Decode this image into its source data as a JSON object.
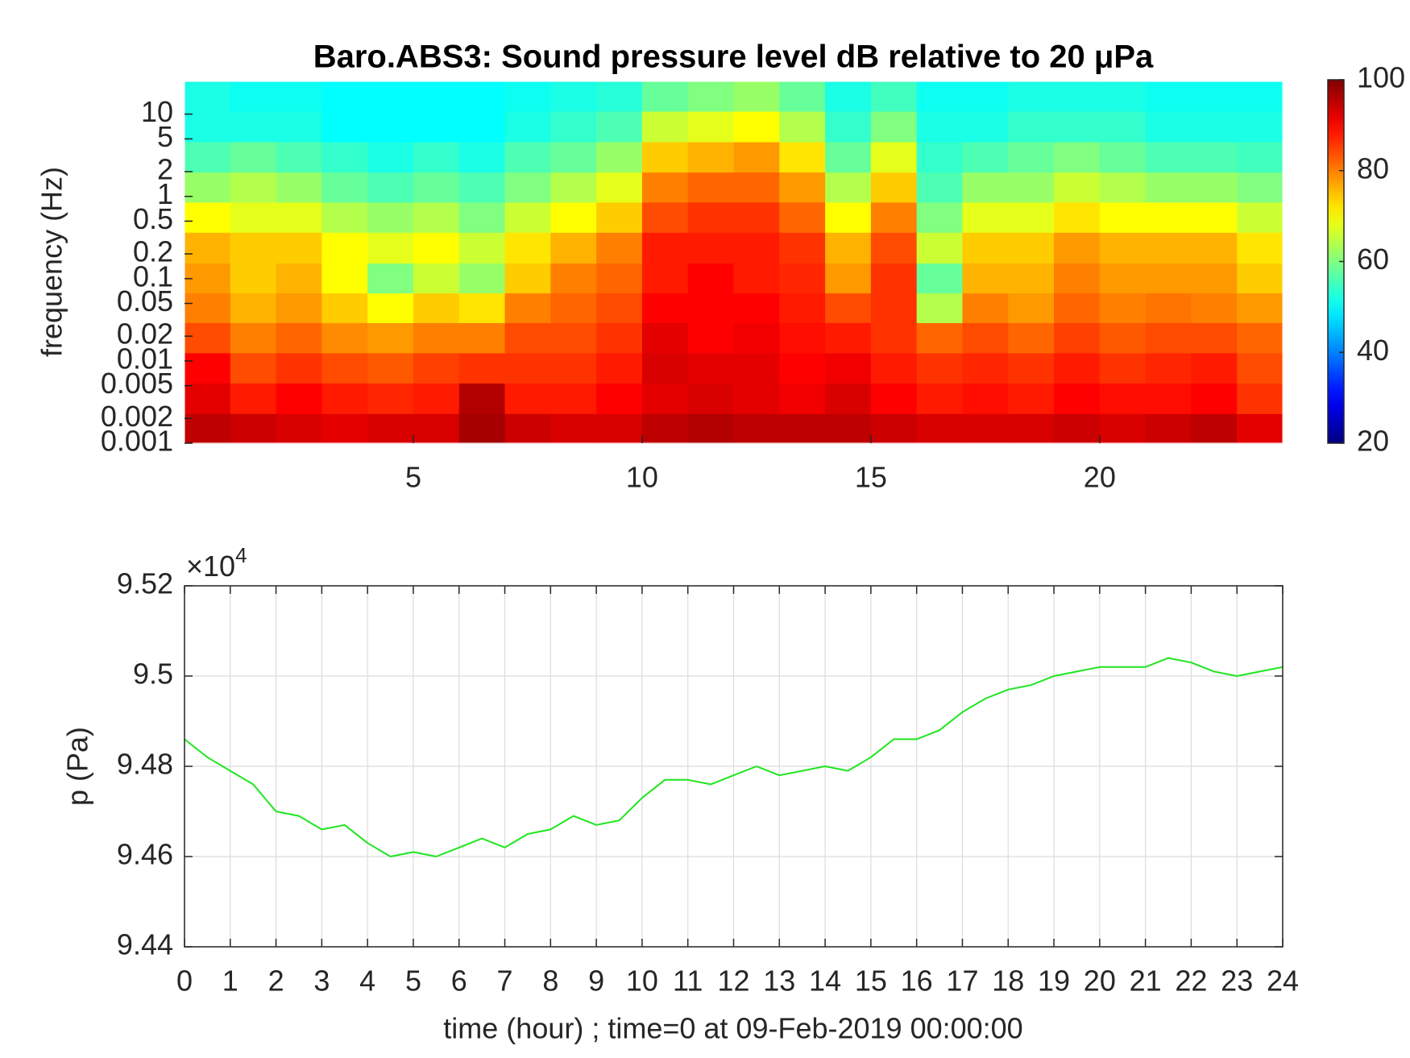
{
  "chart_data": [
    {
      "type": "heatmap",
      "title": "Baro.ABS3: Sound pressure level dB relative to 20 μPa",
      "ylabel": "frequency (Hz)",
      "x": [
        0.5,
        1.5,
        2.5,
        3.5,
        4.5,
        5.5,
        6.5,
        7.5,
        8.5,
        9.5,
        10.5,
        11.5,
        12.5,
        13.5,
        14.5,
        15.5,
        16.5,
        17.5,
        18.5,
        19.5,
        20.5,
        21.5,
        22.5,
        23.5
      ],
      "y": [
        0.0015,
        0.0035,
        0.0083,
        0.019,
        0.045,
        0.1,
        0.24,
        0.56,
        1.3,
        3,
        7.1,
        16.6
      ],
      "z": [
        [
          95,
          94,
          93,
          92,
          93,
          93,
          97,
          94,
          93,
          93,
          95,
          96,
          95,
          95,
          95,
          94,
          93,
          93,
          93,
          94,
          93,
          94,
          95,
          92
        ],
        [
          92,
          88,
          90,
          88,
          87,
          88,
          96,
          88,
          88,
          90,
          92,
          93,
          92,
          91,
          93,
          90,
          88,
          89,
          88,
          90,
          89,
          89,
          90,
          86
        ],
        [
          90,
          84,
          86,
          84,
          83,
          85,
          86,
          86,
          86,
          88,
          93,
          92,
          92,
          90,
          91,
          88,
          86,
          87,
          86,
          88,
          86,
          87,
          88,
          84
        ],
        [
          84,
          80,
          82,
          79,
          78,
          80,
          80,
          84,
          84,
          86,
          92,
          90,
          91,
          89,
          88,
          86,
          82,
          84,
          82,
          85,
          83,
          84,
          84,
          82
        ],
        [
          80,
          76,
          78,
          74,
          70,
          74,
          72,
          80,
          82,
          84,
          90,
          90,
          90,
          88,
          84,
          86,
          64,
          80,
          78,
          82,
          80,
          81,
          80,
          78
        ],
        [
          78,
          74,
          76,
          70,
          60,
          66,
          62,
          74,
          80,
          82,
          88,
          90,
          88,
          87,
          78,
          86,
          58,
          76,
          76,
          80,
          78,
          78,
          78,
          74
        ],
        [
          76,
          74,
          74,
          70,
          68,
          70,
          66,
          72,
          76,
          80,
          88,
          88,
          88,
          86,
          76,
          84,
          66,
          74,
          74,
          78,
          76,
          76,
          76,
          72
        ],
        [
          70,
          68,
          68,
          64,
          62,
          64,
          60,
          66,
          70,
          74,
          84,
          86,
          86,
          82,
          70,
          80,
          60,
          68,
          68,
          72,
          70,
          70,
          70,
          66
        ],
        [
          62,
          64,
          62,
          58,
          56,
          58,
          56,
          60,
          64,
          68,
          80,
          82,
          82,
          78,
          64,
          74,
          56,
          62,
          62,
          66,
          64,
          62,
          62,
          60
        ],
        [
          56,
          58,
          56,
          54,
          52,
          54,
          52,
          56,
          58,
          62,
          74,
          76,
          78,
          72,
          58,
          68,
          54,
          56,
          58,
          60,
          58,
          56,
          56,
          55
        ],
        [
          52,
          52,
          52,
          50,
          50,
          50,
          50,
          52,
          54,
          56,
          66,
          68,
          70,
          64,
          54,
          60,
          52,
          52,
          54,
          54,
          54,
          52,
          52,
          52
        ],
        [
          52,
          51,
          51,
          50,
          50,
          50,
          50,
          51,
          52,
          53,
          58,
          60,
          62,
          58,
          52,
          55,
          51,
          51,
          52,
          52,
          52,
          51,
          51,
          51
        ]
      ],
      "xlim": [
        0,
        24
      ],
      "xticks": [
        5,
        10,
        15,
        20
      ],
      "ylim": [
        0.001,
        25
      ],
      "log_y": true,
      "yticks": [
        0.001,
        0.002,
        0.005,
        0.01,
        0.02,
        0.05,
        0.1,
        0.2,
        0.5,
        1,
        2,
        5,
        10
      ],
      "colormap": "jet",
      "clim": [
        20,
        100
      ],
      "cticks": [
        20,
        40,
        60,
        80,
        100
      ]
    },
    {
      "type": "line",
      "xlabel": "time (hour) ; time=0 at 09-Feb-2019 00:00:00",
      "ylabel": "p (Pa)",
      "y_multiplier": "×10",
      "y_multiplier_exponent": "4",
      "x": [
        0,
        0.5,
        1,
        1.5,
        2,
        2.5,
        3,
        3.5,
        4,
        4.5,
        5,
        5.5,
        6,
        6.5,
        7,
        7.5,
        8,
        8.5,
        9,
        9.5,
        10,
        10.5,
        11,
        11.5,
        12,
        12.5,
        13,
        13.5,
        14,
        14.5,
        15,
        15.5,
        16,
        16.5,
        17,
        17.5,
        18,
        18.5,
        19,
        19.5,
        20,
        20.5,
        21,
        21.5,
        22,
        22.5,
        23,
        23.5,
        24
      ],
      "values": [
        9.486,
        9.482,
        9.479,
        9.476,
        9.47,
        9.469,
        9.466,
        9.467,
        9.463,
        9.46,
        9.461,
        9.46,
        9.462,
        9.464,
        9.462,
        9.465,
        9.466,
        9.469,
        9.467,
        9.468,
        9.473,
        9.477,
        9.477,
        9.476,
        9.478,
        9.48,
        9.478,
        9.479,
        9.48,
        9.479,
        9.482,
        9.486,
        9.486,
        9.488,
        9.492,
        9.495,
        9.497,
        9.498,
        9.5,
        9.501,
        9.502,
        9.502,
        9.502,
        9.504,
        9.503,
        9.501,
        9.5,
        9.501,
        9.502
      ],
      "color": "#1ee61e",
      "xlim": [
        0,
        24
      ],
      "xticks": [
        0,
        1,
        2,
        3,
        4,
        5,
        6,
        7,
        8,
        9,
        10,
        11,
        12,
        13,
        14,
        15,
        16,
        17,
        18,
        19,
        20,
        21,
        22,
        23,
        24
      ],
      "ylim": [
        9.44,
        9.52
      ],
      "yticks": [
        9.44,
        9.46,
        9.48,
        9.5,
        9.52
      ],
      "grid": true
    }
  ]
}
